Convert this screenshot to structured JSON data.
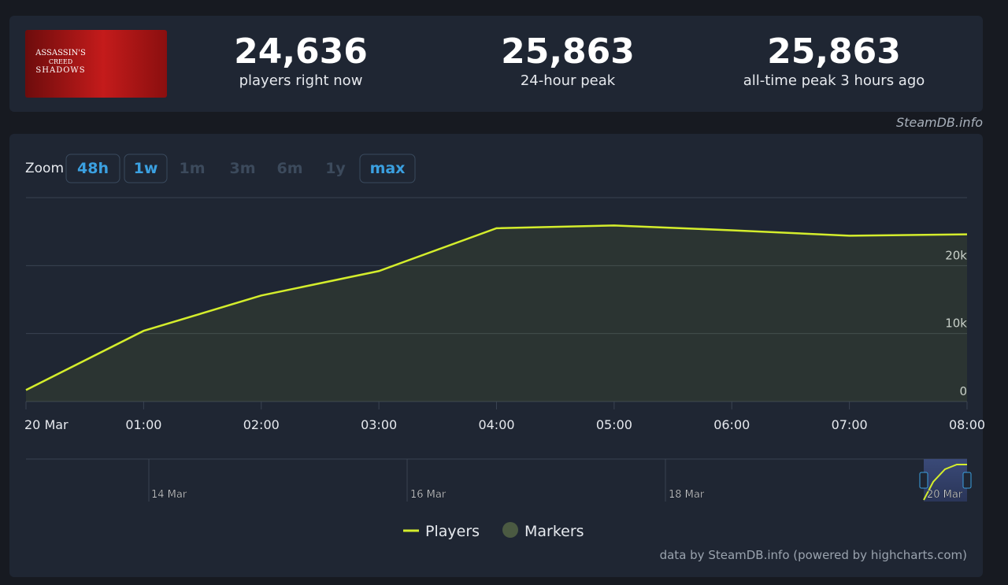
{
  "header": {
    "game_art_text": [
      "ASSASSIN'S",
      "CREED",
      "SHADOWS"
    ],
    "stats": [
      {
        "value": "24,636",
        "label": "players right now"
      },
      {
        "value": "25,863",
        "label": "24-hour peak"
      },
      {
        "value": "25,863",
        "label": "all-time peak 3 hours ago"
      }
    ],
    "source": "SteamDB.info"
  },
  "zoom": {
    "label": "Zoom",
    "buttons": [
      "48h",
      "1w",
      "1m",
      "3m",
      "6m",
      "1y",
      "max"
    ]
  },
  "chart_data": {
    "type": "line",
    "categories": [
      "20 Mar",
      "01:00",
      "02:00",
      "03:00",
      "04:00",
      "05:00",
      "06:00",
      "07:00",
      "08:00"
    ],
    "series": [
      {
        "name": "Players",
        "color": "#d4ed2c",
        "values": [
          1700,
          10400,
          15600,
          19200,
          25500,
          25900,
          25200,
          24400,
          24600
        ]
      },
      {
        "name": "Markers",
        "color": "#4b5a42",
        "values": [
          null,
          null,
          null,
          null,
          null,
          null,
          null,
          null,
          null
        ]
      }
    ],
    "ylim": [
      0,
      30000
    ],
    "yticks": [
      0,
      {
        "value": 10000,
        "label": "10k"
      },
      {
        "value": 20000,
        "label": "20k"
      }
    ],
    "grid": true
  },
  "navigator": {
    "labels": [
      "14 Mar",
      "16 Mar",
      "18 Mar",
      "20 Mar"
    ]
  },
  "credits": "data by SteamDB.info (powered by highcharts.com)"
}
